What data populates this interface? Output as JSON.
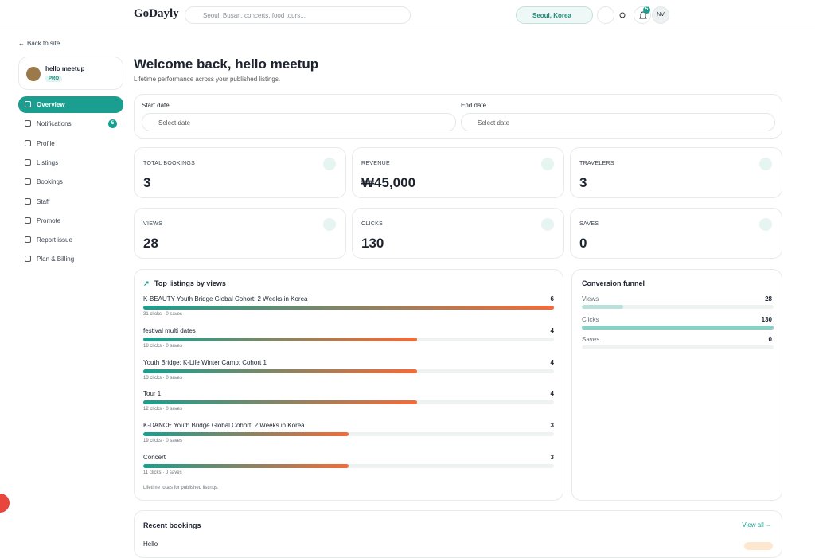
{
  "header": {
    "logo": "GoDayly",
    "search_placeholder": "Seoul, Busan, concerts, food tours...",
    "location": "Seoul, Korea",
    "notification_count": "5",
    "avatar": "NV"
  },
  "sidebar": {
    "back": "Back to site",
    "user": {
      "name": "hello meetup",
      "plan": "PRO"
    },
    "nav": [
      {
        "label": "Overview"
      },
      {
        "label": "Notifications",
        "badge": "5"
      },
      {
        "label": "Profile"
      },
      {
        "label": "Listings"
      },
      {
        "label": "Bookings"
      },
      {
        "label": "Staff"
      },
      {
        "label": "Promote"
      },
      {
        "label": "Report issue"
      },
      {
        "label": "Plan & Billing"
      }
    ]
  },
  "main": {
    "title": "Welcome back, hello meetup",
    "subtitle": "Lifetime performance across your published listings.",
    "dates": {
      "start_label": "Start date",
      "start_placeholder": "Select date",
      "end_label": "End date",
      "end_placeholder": "Select date"
    },
    "stats": [
      {
        "label": "TOTAL BOOKINGS",
        "value": "3"
      },
      {
        "label": "REVENUE",
        "value": "₩45,000"
      },
      {
        "label": "TRAVELERS",
        "value": "3"
      },
      {
        "label": "VIEWS",
        "value": "28"
      },
      {
        "label": "CLICKS",
        "value": "130"
      },
      {
        "label": "SAVES",
        "value": "0"
      }
    ],
    "top_listings": {
      "title": "Top listings by views",
      "items": [
        {
          "name": "K-BEAUTY Youth Bridge Global Cohort: 2 Weeks in Korea",
          "views": 6,
          "meta": "31 clicks · 0 saves"
        },
        {
          "name": "festival multi dates",
          "views": 4,
          "meta": "18 clicks · 0 saves"
        },
        {
          "name": "Youth Bridge: K-Life Winter Camp: Cohort 1",
          "views": 4,
          "meta": "13 clicks · 0 saves"
        },
        {
          "name": "Tour 1",
          "views": 4,
          "meta": "12 clicks · 0 saves"
        },
        {
          "name": "K-DANCE Youth Bridge Global Cohort: 2 Weeks in Korea",
          "views": 3,
          "meta": "19 clicks · 0 saves"
        },
        {
          "name": "Concert",
          "views": 3,
          "meta": "11 clicks · 0 saves"
        }
      ],
      "footnote": "Lifetime totals for published listings."
    },
    "funnel": {
      "title": "Conversion funnel",
      "items": [
        {
          "label": "Views",
          "value": 28
        },
        {
          "label": "Clicks",
          "value": 130
        },
        {
          "label": "Saves",
          "value": 0
        }
      ]
    },
    "recent": {
      "title": "Recent bookings",
      "view_all": "View all →",
      "rows": [
        {
          "name": "Hello"
        }
      ]
    }
  }
}
